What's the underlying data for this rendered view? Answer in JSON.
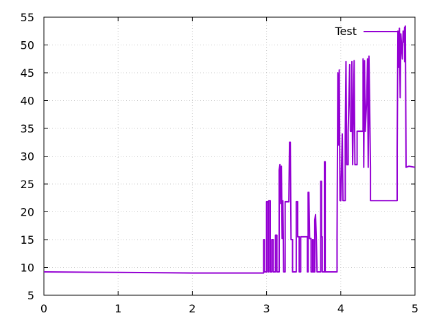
{
  "chart_data": {
    "type": "line",
    "title": "",
    "xlabel": "",
    "ylabel": "",
    "xlim": [
      0,
      5
    ],
    "ylim": [
      5,
      55
    ],
    "xticks": [
      "0",
      "1",
      "2",
      "3",
      "4",
      "5"
    ],
    "yticks": [
      "5",
      "10",
      "15",
      "20",
      "25",
      "30",
      "35",
      "40",
      "45",
      "50",
      "55"
    ],
    "grid": true,
    "legend_position": "top-right",
    "series": [
      {
        "name": "Test",
        "color": "#9400d3",
        "points": [
          [
            0.0,
            9.2
          ],
          [
            1.0,
            9.1
          ],
          [
            2.0,
            9.0
          ],
          [
            2.96,
            9.0
          ],
          [
            2.96,
            15.0
          ],
          [
            2.97,
            15.0
          ],
          [
            2.97,
            9.2
          ],
          [
            3.0,
            9.2
          ],
          [
            3.0,
            21.8
          ],
          [
            3.02,
            21.8
          ],
          [
            3.02,
            9.2
          ],
          [
            3.03,
            9.2
          ],
          [
            3.03,
            22.0
          ],
          [
            3.05,
            22.0
          ],
          [
            3.05,
            9.2
          ],
          [
            3.07,
            9.2
          ],
          [
            3.07,
            15.0
          ],
          [
            3.09,
            15.0
          ],
          [
            3.09,
            9.2
          ],
          [
            3.12,
            9.2
          ],
          [
            3.12,
            15.8
          ],
          [
            3.14,
            15.8
          ],
          [
            3.14,
            9.2
          ],
          [
            3.17,
            9.2
          ],
          [
            3.17,
            27.5
          ],
          [
            3.18,
            28.5
          ],
          [
            3.19,
            21.5
          ],
          [
            3.2,
            28.2
          ],
          [
            3.21,
            15.2
          ],
          [
            3.22,
            22.0
          ],
          [
            3.23,
            9.2
          ],
          [
            3.25,
            9.2
          ],
          [
            3.25,
            21.8
          ],
          [
            3.3,
            21.8
          ],
          [
            3.31,
            32.5
          ],
          [
            3.32,
            32.5
          ],
          [
            3.33,
            15.0
          ],
          [
            3.35,
            15.0
          ],
          [
            3.35,
            9.2
          ],
          [
            3.4,
            9.2
          ],
          [
            3.4,
            21.8
          ],
          [
            3.42,
            21.8
          ],
          [
            3.42,
            15.5
          ],
          [
            3.44,
            15.5
          ],
          [
            3.44,
            9.2
          ],
          [
            3.46,
            9.2
          ],
          [
            3.46,
            15.5
          ],
          [
            3.55,
            15.5
          ],
          [
            3.55,
            9.2
          ],
          [
            3.56,
            9.2
          ],
          [
            3.56,
            23.5
          ],
          [
            3.57,
            23.5
          ],
          [
            3.58,
            15.2
          ],
          [
            3.6,
            15.2
          ],
          [
            3.6,
            9.2
          ],
          [
            3.62,
            9.2
          ],
          [
            3.62,
            15.0
          ],
          [
            3.63,
            15.0
          ],
          [
            3.63,
            9.2
          ],
          [
            3.65,
            9.2
          ],
          [
            3.65,
            18.5
          ],
          [
            3.66,
            19.5
          ],
          [
            3.67,
            15.5
          ],
          [
            3.68,
            9.2
          ],
          [
            3.73,
            9.2
          ],
          [
            3.73,
            25.5
          ],
          [
            3.74,
            25.5
          ],
          [
            3.74,
            15.5
          ],
          [
            3.75,
            15.5
          ],
          [
            3.75,
            9.2
          ],
          [
            3.78,
            9.2
          ],
          [
            3.78,
            29.0
          ],
          [
            3.79,
            29.0
          ],
          [
            3.79,
            9.2
          ],
          [
            3.95,
            9.2
          ],
          [
            3.95,
            15.5
          ],
          [
            3.96,
            45.0
          ],
          [
            3.97,
            32.0
          ],
          [
            3.98,
            45.5
          ],
          [
            3.99,
            22.0
          ],
          [
            4.0,
            22.0
          ],
          [
            4.02,
            34.0
          ],
          [
            4.03,
            22.0
          ],
          [
            4.06,
            22.0
          ],
          [
            4.06,
            33.0
          ],
          [
            4.07,
            47.0
          ],
          [
            4.08,
            28.5
          ],
          [
            4.1,
            28.5
          ],
          [
            4.1,
            34.5
          ],
          [
            4.12,
            46.5
          ],
          [
            4.13,
            34.5
          ],
          [
            4.15,
            34.5
          ],
          [
            4.15,
            47.0
          ],
          [
            4.16,
            28.5
          ],
          [
            4.18,
            47.2
          ],
          [
            4.19,
            28.5
          ],
          [
            4.22,
            28.5
          ],
          [
            4.22,
            34.5
          ],
          [
            4.3,
            34.5
          ],
          [
            4.3,
            47.5
          ],
          [
            4.31,
            28.0
          ],
          [
            4.32,
            47.2
          ],
          [
            4.33,
            34.5
          ],
          [
            4.35,
            40.5
          ],
          [
            4.36,
            47.5
          ],
          [
            4.37,
            28.0
          ],
          [
            4.38,
            48.0
          ],
          [
            4.4,
            28.0
          ],
          [
            4.4,
            22.0
          ],
          [
            4.55,
            22.0
          ],
          [
            4.7,
            22.0
          ],
          [
            4.76,
            22.0
          ],
          [
            4.76,
            31.0
          ],
          [
            4.77,
            52.5
          ],
          [
            4.78,
            46.0
          ],
          [
            4.79,
            53.0
          ],
          [
            4.8,
            40.5
          ],
          [
            4.81,
            52.0
          ],
          [
            4.83,
            47.5
          ],
          [
            4.84,
            52.5
          ],
          [
            4.85,
            50.5
          ],
          [
            4.86,
            53.2
          ],
          [
            4.86,
            47.0
          ],
          [
            4.87,
            53.4
          ],
          [
            4.88,
            28.0
          ],
          [
            4.92,
            28.2
          ],
          [
            5.0,
            28.0
          ]
        ]
      }
    ]
  }
}
